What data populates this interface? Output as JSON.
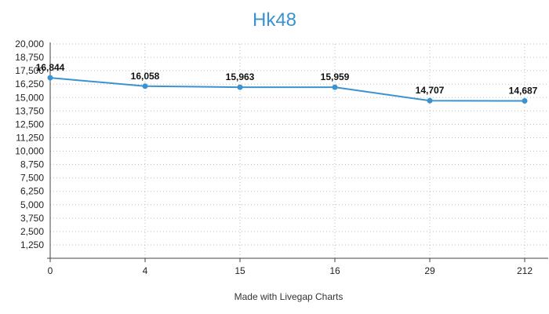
{
  "colors": {
    "series": "#3a93d0",
    "title": "#3a93d0",
    "grid": "#bbbbbb",
    "axis": "#444444"
  },
  "footer": {
    "credit": "Made with Livegap Charts"
  },
  "chart_data": {
    "type": "line",
    "title": "Hk48",
    "xlabel": "",
    "ylabel": "",
    "categories": [
      "0",
      "4",
      "15",
      "16",
      "29",
      "212"
    ],
    "series": [
      {
        "values": [
          16844,
          16058,
          15963,
          15959,
          14707,
          14687
        ],
        "data_labels": [
          "16,844",
          "16,058",
          "15,963",
          "15,959",
          "14,707",
          "14,687"
        ]
      }
    ],
    "ylim": [
      0,
      20000
    ],
    "yticks": [
      1250,
      2500,
      3750,
      5000,
      6250,
      7500,
      8750,
      10000,
      11250,
      12500,
      13750,
      15000,
      16250,
      17500,
      18750,
      20000
    ],
    "ytick_labels": [
      "1,250",
      "2,500",
      "3,750",
      "5,000",
      "6,250",
      "7,500",
      "8,750",
      "10,000",
      "11,250",
      "12,500",
      "13,750",
      "15,000",
      "16,250",
      "17,500",
      "18,750",
      "20,000"
    ],
    "grid": true,
    "grid_style": "dotted",
    "legend": "none"
  }
}
